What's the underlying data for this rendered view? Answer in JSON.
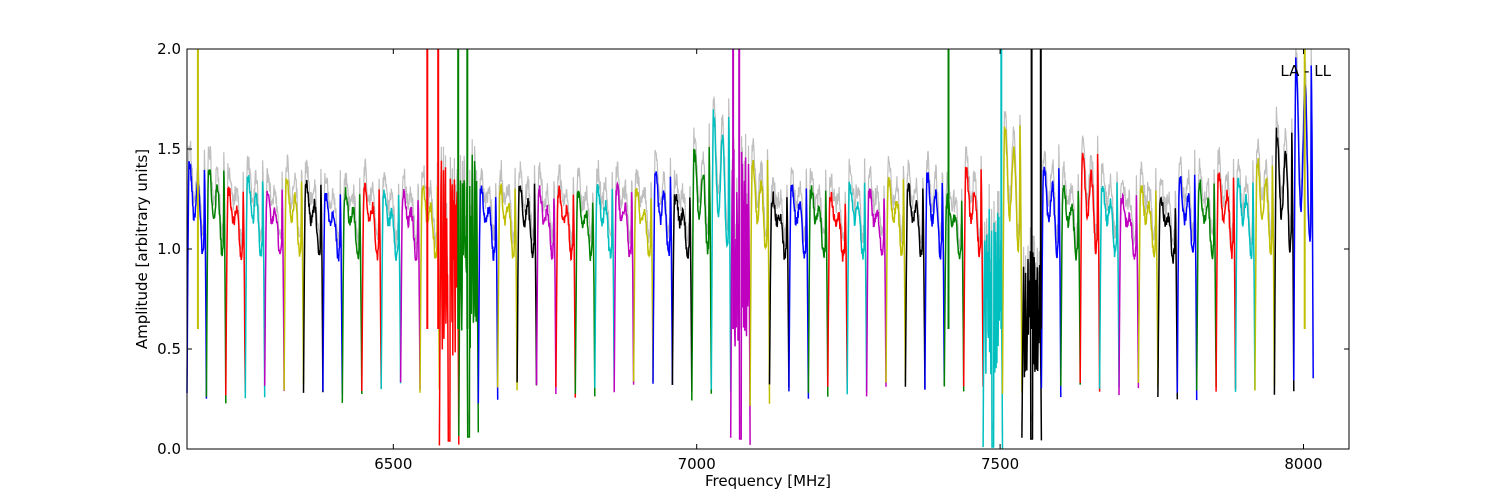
{
  "chart_data": {
    "type": "line",
    "title": "",
    "xlabel": "Frequency [MHz]",
    "ylabel": "Amplitude [arbitrary units]",
    "xlim": [
      6160,
      8075
    ],
    "ylim": [
      0.0,
      2.0
    ],
    "xticks": [
      {
        "value": 6500,
        "label": "6500"
      },
      {
        "value": 7000,
        "label": "7000"
      },
      {
        "value": 7500,
        "label": "7500"
      },
      {
        "value": 8000,
        "label": "8000"
      }
    ],
    "yticks": [
      {
        "value": 0.0,
        "label": "0.0"
      },
      {
        "value": 0.5,
        "label": "0.5"
      },
      {
        "value": 1.0,
        "label": "1.0"
      },
      {
        "value": 1.5,
        "label": "1.5"
      },
      {
        "value": 2.0,
        "label": "2.0"
      }
    ],
    "annotation": {
      "text": "LA - LL",
      "position": "top-right"
    },
    "grid": false,
    "legend": "none",
    "background_series_color": "#bfbfbf",
    "channel_width_mhz": 32,
    "colors": [
      "#0000ff",
      "#008000",
      "#ff0000",
      "#00bfbf",
      "#bf00bf",
      "#bfbf00",
      "#000000"
    ],
    "channels": [
      {
        "start": 6160,
        "peak": 1.45,
        "color": "#0000ff",
        "dip": 0.27
      },
      {
        "start": 6192,
        "peak": 1.43,
        "color": "#008000",
        "dip": 0.25
      },
      {
        "start": 6224,
        "peak": 1.3,
        "color": "#ff0000",
        "dip": 0.27
      },
      {
        "start": 6256,
        "peak": 1.38,
        "color": "#00bfbf",
        "dip": 0.27
      },
      {
        "start": 6288,
        "peak": 1.29,
        "color": "#bf00bf",
        "dip": 0.32
      },
      {
        "start": 6320,
        "peak": 1.37,
        "color": "#bfbf00",
        "dip": 0.3
      },
      {
        "start": 6352,
        "peak": 1.33,
        "color": "#000000",
        "dip": 0.3
      },
      {
        "start": 6384,
        "peak": 1.28,
        "color": "#0000ff",
        "dip": 0.26
      },
      {
        "start": 6416,
        "peak": 1.29,
        "color": "#008000",
        "dip": 0.26
      },
      {
        "start": 6448,
        "peak": 1.31,
        "color": "#ff0000",
        "dip": 0.28
      },
      {
        "start": 6480,
        "peak": 1.28,
        "color": "#00bfbf",
        "dip": 0.3
      },
      {
        "start": 6512,
        "peak": 1.28,
        "color": "#bf00bf",
        "dip": 0.31
      },
      {
        "start": 6544,
        "peak": 1.31,
        "color": "#bfbf00",
        "dip": 0.3
      },
      {
        "start": 6576,
        "peak": 1.46,
        "color": "#ff0000",
        "dip": 0.04
      },
      {
        "start": 6608,
        "peak": 1.52,
        "color": "#008000",
        "dip": 0.06
      },
      {
        "start": 6640,
        "peak": 1.3,
        "color": "#0000ff",
        "dip": 0.25
      },
      {
        "start": 6672,
        "peak": 1.32,
        "color": "#bfbf00",
        "dip": 0.29
      },
      {
        "start": 6704,
        "peak": 1.33,
        "color": "#000000",
        "dip": 0.31
      },
      {
        "start": 6736,
        "peak": 1.3,
        "color": "#bf00bf",
        "dip": 0.3
      },
      {
        "start": 6768,
        "peak": 1.3,
        "color": "#ff0000",
        "dip": 0.28
      },
      {
        "start": 6800,
        "peak": 1.28,
        "color": "#008000",
        "dip": 0.28
      },
      {
        "start": 6832,
        "peak": 1.32,
        "color": "#00bfbf",
        "dip": 0.29
      },
      {
        "start": 6864,
        "peak": 1.32,
        "color": "#bf00bf",
        "dip": 0.3
      },
      {
        "start": 6896,
        "peak": 1.3,
        "color": "#bfbf00",
        "dip": 0.31
      },
      {
        "start": 6928,
        "peak": 1.38,
        "color": "#0000ff",
        "dip": 0.32
      },
      {
        "start": 6960,
        "peak": 1.27,
        "color": "#000000",
        "dip": 0.3
      },
      {
        "start": 6992,
        "peak": 1.51,
        "color": "#008000",
        "dip": 0.26
      },
      {
        "start": 7024,
        "peak": 1.7,
        "color": "#00bfbf",
        "dip": 0.27
      },
      {
        "start": 7056,
        "peak": 1.58,
        "color": "#bf00bf",
        "dip": 0.05
      },
      {
        "start": 7088,
        "peak": 1.45,
        "color": "#bfbf00",
        "dip": 0.24
      },
      {
        "start": 7120,
        "peak": 1.26,
        "color": "#000000",
        "dip": 0.3
      },
      {
        "start": 7152,
        "peak": 1.32,
        "color": "#0000ff",
        "dip": 0.27
      },
      {
        "start": 7184,
        "peak": 1.3,
        "color": "#008000",
        "dip": 0.29
      },
      {
        "start": 7216,
        "peak": 1.26,
        "color": "#ff0000",
        "dip": 0.3
      },
      {
        "start": 7248,
        "peak": 1.33,
        "color": "#00bfbf",
        "dip": 0.3
      },
      {
        "start": 7280,
        "peak": 1.29,
        "color": "#bf00bf",
        "dip": 0.29
      },
      {
        "start": 7312,
        "peak": 1.35,
        "color": "#bfbf00",
        "dip": 0.31
      },
      {
        "start": 7344,
        "peak": 1.33,
        "color": "#000000",
        "dip": 0.3
      },
      {
        "start": 7376,
        "peak": 1.38,
        "color": "#0000ff",
        "dip": 0.32
      },
      {
        "start": 7408,
        "peak": 1.25,
        "color": "#008000",
        "dip": 0.3
      },
      {
        "start": 7440,
        "peak": 1.41,
        "color": "#ff0000",
        "dip": 0.33
      },
      {
        "start": 7472,
        "peak": 1.2,
        "color": "#00bfbf",
        "dip": 0.01
      },
      {
        "start": 7504,
        "peak": 1.64,
        "color": "#bfbf00",
        "dip": 0.3
      },
      {
        "start": 7536,
        "peak": 1.0,
        "color": "#000000",
        "dip": 0.05
      },
      {
        "start": 7568,
        "peak": 1.43,
        "color": "#0000ff",
        "dip": 0.28
      },
      {
        "start": 7600,
        "peak": 1.32,
        "color": "#008000",
        "dip": 0.31
      },
      {
        "start": 7632,
        "peak": 1.5,
        "color": "#ff0000",
        "dip": 0.31
      },
      {
        "start": 7664,
        "peak": 1.33,
        "color": "#00bfbf",
        "dip": 0.3
      },
      {
        "start": 7696,
        "peak": 1.26,
        "color": "#bf00bf",
        "dip": 0.29
      },
      {
        "start": 7728,
        "peak": 1.32,
        "color": "#bfbf00",
        "dip": 0.31
      },
      {
        "start": 7760,
        "peak": 1.24,
        "color": "#000000",
        "dip": 0.25
      },
      {
        "start": 7792,
        "peak": 1.37,
        "color": "#0000ff",
        "dip": 0.27
      },
      {
        "start": 7824,
        "peak": 1.34,
        "color": "#008000",
        "dip": 0.28
      },
      {
        "start": 7856,
        "peak": 1.39,
        "color": "#ff0000",
        "dip": 0.3
      },
      {
        "start": 7888,
        "peak": 1.36,
        "color": "#00bfbf",
        "dip": 0.28
      },
      {
        "start": 7920,
        "peak": 1.46,
        "color": "#bfbf00",
        "dip": 0.3
      },
      {
        "start": 7952,
        "peak": 1.61,
        "color": "#000000",
        "dip": 0.28
      },
      {
        "start": 7984,
        "peak": 1.97,
        "color": "#0000ff",
        "dip": 0.34
      }
    ],
    "spikes": [
      {
        "x": 6178,
        "y": 2.0,
        "color": "#bfbf00"
      },
      {
        "x": 6556,
        "y": 2.0,
        "color": "#ff0000"
      },
      {
        "x": 6574,
        "y": 2.0,
        "color": "#ff0000"
      },
      {
        "x": 6607,
        "y": 2.0,
        "color": "#008000"
      },
      {
        "x": 6622,
        "y": 2.0,
        "color": "#008000"
      },
      {
        "x": 7060,
        "y": 2.0,
        "color": "#bf00bf"
      },
      {
        "x": 7070,
        "y": 2.0,
        "color": "#bf00bf"
      },
      {
        "x": 7415,
        "y": 2.0,
        "color": "#008000"
      },
      {
        "x": 7502,
        "y": 2.0,
        "color": "#00bfbf"
      },
      {
        "x": 7552,
        "y": 2.0,
        "color": "#000000"
      },
      {
        "x": 7567,
        "y": 2.0,
        "color": "#000000"
      },
      {
        "x": 8002,
        "y": 2.0,
        "color": "#bfbf00"
      }
    ]
  }
}
